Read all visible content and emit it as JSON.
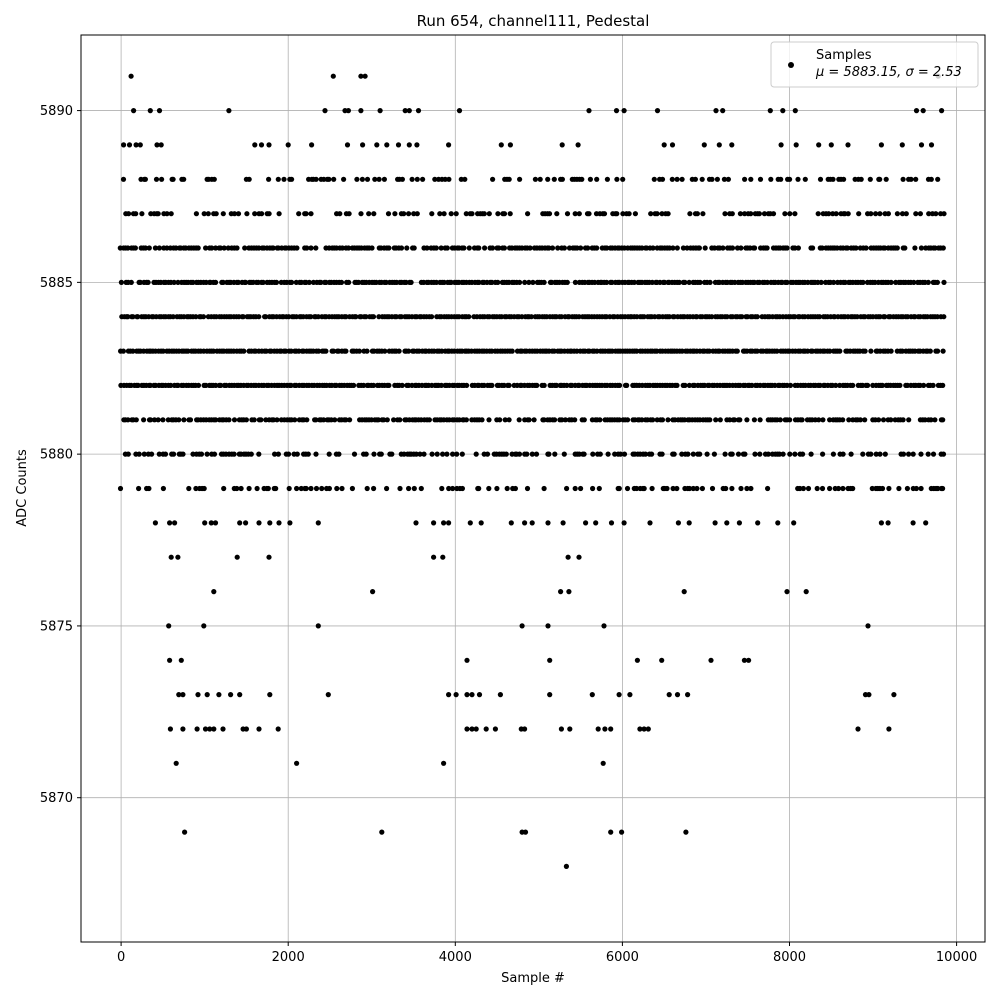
{
  "chart_data": {
    "type": "scatter",
    "title": "Run 654, channel111, Pedestal",
    "xlabel": "Sample #",
    "ylabel": "ADC Counts",
    "xlim": [
      -480,
      10340
    ],
    "ylim": [
      5865.8,
      5892.2
    ],
    "xticks": [
      0,
      2000,
      4000,
      6000,
      8000,
      10000
    ],
    "xtick_labels": [
      "0",
      "2000",
      "4000",
      "6000",
      "8000",
      "10000"
    ],
    "yticks": [
      5870,
      5875,
      5880,
      5885,
      5890
    ],
    "ytick_labels": [
      "5870",
      "5875",
      "5880",
      "5885",
      "5890"
    ],
    "grid": true,
    "legend": {
      "position": "top-right",
      "entries": [
        "Samples",
        "μ = 5883.15, σ = 2.53"
      ]
    },
    "marker_color": "#000000",
    "series": [
      {
        "name": "Samples",
        "dense_levels": [
          5879,
          5880,
          5881,
          5882,
          5883,
          5884,
          5885,
          5886,
          5887,
          5888
        ],
        "x_range": [
          0,
          9850
        ],
        "points": [
          [
            120,
            5891
          ],
          [
            2540,
            5891
          ],
          [
            2870,
            5891
          ],
          [
            2920,
            5891
          ],
          [
            9780,
            5891
          ],
          [
            150,
            5890
          ],
          [
            350,
            5890
          ],
          [
            460,
            5890
          ],
          [
            1290,
            5890
          ],
          [
            2440,
            5890
          ],
          [
            2680,
            5890
          ],
          [
            2720,
            5890
          ],
          [
            2870,
            5890
          ],
          [
            3100,
            5890
          ],
          [
            3400,
            5890
          ],
          [
            3450,
            5890
          ],
          [
            3560,
            5890
          ],
          [
            4050,
            5890
          ],
          [
            5600,
            5890
          ],
          [
            5930,
            5890
          ],
          [
            6020,
            5890
          ],
          [
            6420,
            5890
          ],
          [
            7120,
            5890
          ],
          [
            7200,
            5890
          ],
          [
            7770,
            5890
          ],
          [
            7920,
            5890
          ],
          [
            8070,
            5890
          ],
          [
            9520,
            5890
          ],
          [
            9600,
            5890
          ],
          [
            9820,
            5890
          ],
          [
            30,
            5889
          ],
          [
            100,
            5889
          ],
          [
            180,
            5889
          ],
          [
            230,
            5889
          ],
          [
            430,
            5889
          ],
          [
            480,
            5889
          ],
          [
            1600,
            5889
          ],
          [
            1680,
            5889
          ],
          [
            1770,
            5889
          ],
          [
            2000,
            5889
          ],
          [
            2280,
            5889
          ],
          [
            2710,
            5889
          ],
          [
            2890,
            5889
          ],
          [
            3060,
            5889
          ],
          [
            3180,
            5889
          ],
          [
            3320,
            5889
          ],
          [
            3450,
            5889
          ],
          [
            3540,
            5889
          ],
          [
            3920,
            5889
          ],
          [
            4550,
            5889
          ],
          [
            4660,
            5889
          ],
          [
            5280,
            5889
          ],
          [
            5470,
            5889
          ],
          [
            6500,
            5889
          ],
          [
            6600,
            5889
          ],
          [
            6980,
            5889
          ],
          [
            7160,
            5889
          ],
          [
            7310,
            5889
          ],
          [
            7900,
            5889
          ],
          [
            8080,
            5889
          ],
          [
            8350,
            5889
          ],
          [
            8500,
            5889
          ],
          [
            8700,
            5889
          ],
          [
            9100,
            5889
          ],
          [
            9350,
            5889
          ],
          [
            9580,
            5889
          ],
          [
            9700,
            5889
          ],
          [
            410,
            5878
          ],
          [
            580,
            5878
          ],
          [
            640,
            5878
          ],
          [
            1000,
            5878
          ],
          [
            1080,
            5878
          ],
          [
            1130,
            5878
          ],
          [
            1420,
            5878
          ],
          [
            1490,
            5878
          ],
          [
            1650,
            5878
          ],
          [
            1780,
            5878
          ],
          [
            1890,
            5878
          ],
          [
            2020,
            5878
          ],
          [
            2360,
            5878
          ],
          [
            3530,
            5878
          ],
          [
            3740,
            5878
          ],
          [
            3860,
            5878
          ],
          [
            3920,
            5878
          ],
          [
            4180,
            5878
          ],
          [
            4310,
            5878
          ],
          [
            4670,
            5878
          ],
          [
            4830,
            5878
          ],
          [
            4920,
            5878
          ],
          [
            5110,
            5878
          ],
          [
            5290,
            5878
          ],
          [
            5560,
            5878
          ],
          [
            5680,
            5878
          ],
          [
            5870,
            5878
          ],
          [
            6020,
            5878
          ],
          [
            6330,
            5878
          ],
          [
            6670,
            5878
          ],
          [
            6800,
            5878
          ],
          [
            7110,
            5878
          ],
          [
            7250,
            5878
          ],
          [
            7400,
            5878
          ],
          [
            7620,
            5878
          ],
          [
            7860,
            5878
          ],
          [
            8050,
            5878
          ],
          [
            9100,
            5878
          ],
          [
            9180,
            5878
          ],
          [
            9480,
            5878
          ],
          [
            9630,
            5878
          ],
          [
            600,
            5877
          ],
          [
            680,
            5877
          ],
          [
            1390,
            5877
          ],
          [
            1770,
            5877
          ],
          [
            3740,
            5877
          ],
          [
            3850,
            5877
          ],
          [
            5350,
            5877
          ],
          [
            5480,
            5877
          ],
          [
            1110,
            5876
          ],
          [
            3010,
            5876
          ],
          [
            5260,
            5876
          ],
          [
            5360,
            5876
          ],
          [
            6740,
            5876
          ],
          [
            7970,
            5876
          ],
          [
            8200,
            5876
          ],
          [
            570,
            5875
          ],
          [
            990,
            5875
          ],
          [
            2360,
            5875
          ],
          [
            4800,
            5875
          ],
          [
            5110,
            5875
          ],
          [
            5780,
            5875
          ],
          [
            8940,
            5875
          ],
          [
            580,
            5874
          ],
          [
            720,
            5874
          ],
          [
            4140,
            5874
          ],
          [
            5130,
            5874
          ],
          [
            6180,
            5874
          ],
          [
            6470,
            5874
          ],
          [
            7060,
            5874
          ],
          [
            7460,
            5874
          ],
          [
            7510,
            5874
          ],
          [
            690,
            5873
          ],
          [
            740,
            5873
          ],
          [
            920,
            5873
          ],
          [
            1030,
            5873
          ],
          [
            1170,
            5873
          ],
          [
            1310,
            5873
          ],
          [
            1420,
            5873
          ],
          [
            1780,
            5873
          ],
          [
            2480,
            5873
          ],
          [
            3920,
            5873
          ],
          [
            4010,
            5873
          ],
          [
            4140,
            5873
          ],
          [
            4200,
            5873
          ],
          [
            4290,
            5873
          ],
          [
            4540,
            5873
          ],
          [
            5130,
            5873
          ],
          [
            5640,
            5873
          ],
          [
            5960,
            5873
          ],
          [
            6090,
            5873
          ],
          [
            6560,
            5873
          ],
          [
            6660,
            5873
          ],
          [
            6780,
            5873
          ],
          [
            8910,
            5873
          ],
          [
            8950,
            5873
          ],
          [
            9250,
            5873
          ],
          [
            590,
            5872
          ],
          [
            740,
            5872
          ],
          [
            910,
            5872
          ],
          [
            1010,
            5872
          ],
          [
            1060,
            5872
          ],
          [
            1110,
            5872
          ],
          [
            1220,
            5872
          ],
          [
            1460,
            5872
          ],
          [
            1500,
            5872
          ],
          [
            1650,
            5872
          ],
          [
            1880,
            5872
          ],
          [
            4140,
            5872
          ],
          [
            4200,
            5872
          ],
          [
            4250,
            5872
          ],
          [
            4370,
            5872
          ],
          [
            4480,
            5872
          ],
          [
            4790,
            5872
          ],
          [
            4830,
            5872
          ],
          [
            5270,
            5872
          ],
          [
            5370,
            5872
          ],
          [
            5710,
            5872
          ],
          [
            5790,
            5872
          ],
          [
            5860,
            5872
          ],
          [
            6210,
            5872
          ],
          [
            6260,
            5872
          ],
          [
            6310,
            5872
          ],
          [
            8820,
            5872
          ],
          [
            9190,
            5872
          ],
          [
            660,
            5871
          ],
          [
            2100,
            5871
          ],
          [
            3860,
            5871
          ],
          [
            5770,
            5871
          ],
          [
            760,
            5869
          ],
          [
            3120,
            5869
          ],
          [
            4800,
            5869
          ],
          [
            4840,
            5869
          ],
          [
            5860,
            5869
          ],
          [
            5990,
            5869
          ],
          [
            6760,
            5869
          ],
          [
            5330,
            5868
          ]
        ]
      }
    ]
  }
}
